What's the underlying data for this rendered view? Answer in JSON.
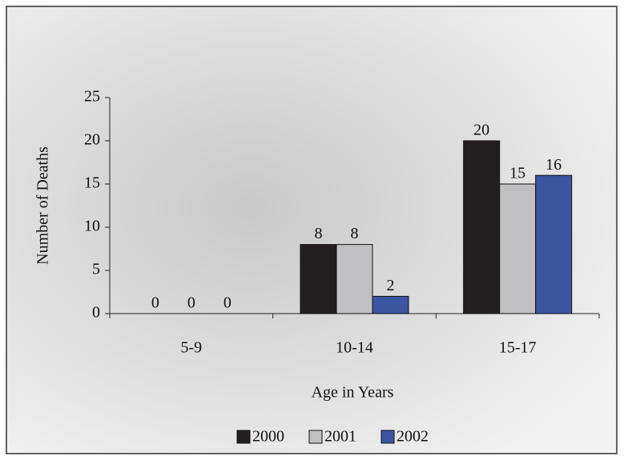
{
  "chart_data": {
    "type": "bar",
    "x_label": "Age in Years",
    "y_label": "Number of Deaths",
    "categories": [
      "5-9",
      "10-14",
      "15-17"
    ],
    "series": [
      {
        "name": "2000",
        "color": "#231f20",
        "values": [
          0,
          8,
          20
        ]
      },
      {
        "name": "2001",
        "color": "#c0c0c2",
        "values": [
          0,
          8,
          15
        ]
      },
      {
        "name": "2002",
        "color": "#3b55a0",
        "values": [
          0,
          2,
          16
        ]
      }
    ],
    "ylim": [
      0,
      25
    ],
    "yticks": [
      0,
      5,
      10,
      15,
      20,
      25
    ],
    "legend": "bottom"
  }
}
